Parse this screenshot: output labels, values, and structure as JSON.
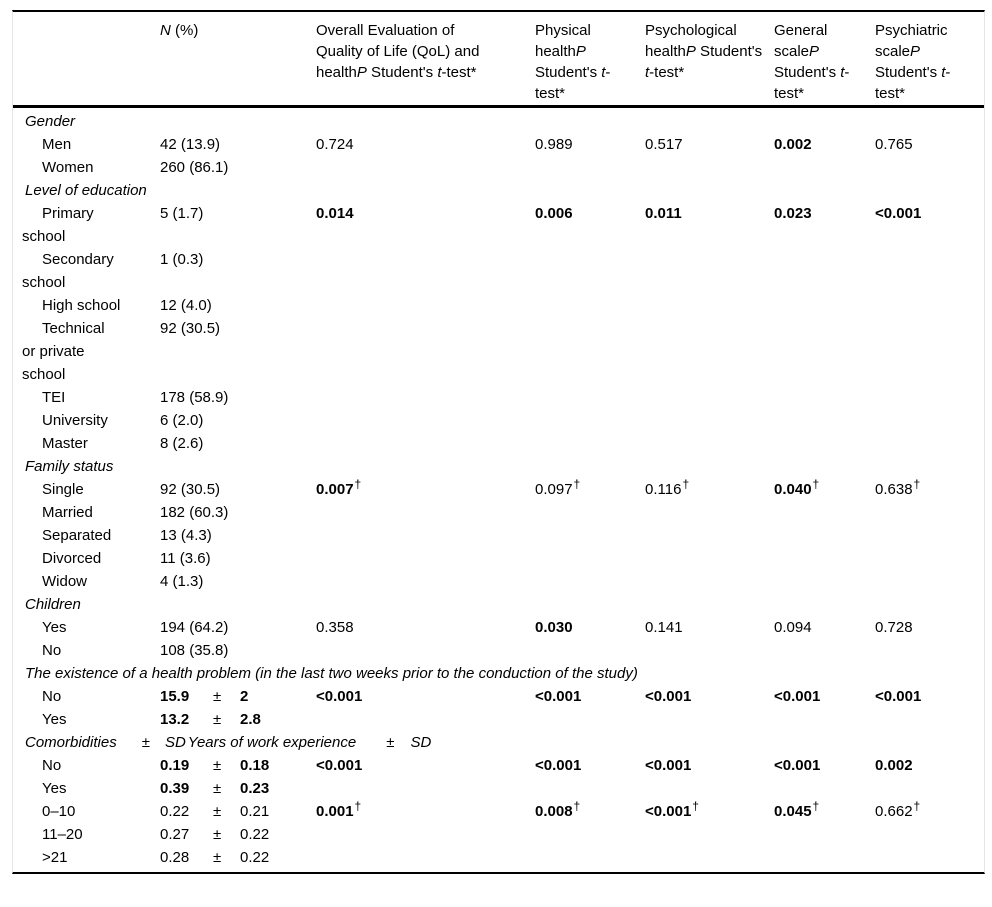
{
  "table": {
    "header": {
      "n": [
        {
          "t": "N",
          "i": 1
        },
        {
          "t": " (%)"
        }
      ],
      "qol": [
        {
          "t": "Overall Evaluation of Quality of Life (QoL) and health"
        },
        {
          "t": "P",
          "i": 1
        },
        {
          "t": " Student's "
        },
        {
          "t": "t",
          "i": 1
        },
        {
          "t": "-test*"
        }
      ],
      "phys": [
        {
          "t": "Physical health"
        },
        {
          "t": "P",
          "i": 1
        },
        {
          "t": " Student's "
        },
        {
          "t": "t",
          "i": 1
        },
        {
          "t": "-test*"
        }
      ],
      "psych": [
        {
          "t": "Psychological health"
        },
        {
          "t": "P",
          "i": 1
        },
        {
          "t": " Student's "
        },
        {
          "t": "t",
          "i": 1
        },
        {
          "t": "-test*"
        }
      ],
      "gen": [
        {
          "t": "General scale"
        },
        {
          "t": "P",
          "i": 1
        },
        {
          "t": " Student's "
        },
        {
          "t": "t",
          "i": 1
        },
        {
          "t": "-test*"
        }
      ],
      "psy": [
        {
          "t": "Psychiatric scale"
        },
        {
          "t": "P",
          "i": 1
        },
        {
          "t": " Student's "
        },
        {
          "t": "t",
          "i": 1
        },
        {
          "t": "-test*"
        }
      ]
    },
    "rows": [
      {
        "type": "section",
        "label": "Gender"
      },
      {
        "type": "data",
        "label": "Men",
        "n": "42 (13.9)",
        "p": {
          "qol": {
            "v": "0.724"
          },
          "phys": {
            "v": "0.989"
          },
          "psych": {
            "v": "0.517"
          },
          "gen": {
            "v": "0.002",
            "b": 1
          },
          "psy": {
            "v": "0.765"
          }
        }
      },
      {
        "type": "data",
        "label": "Women",
        "n": "260 (86.1)"
      },
      {
        "type": "section",
        "label": "Level of education"
      },
      {
        "type": "data",
        "label": "Primary school",
        "n": "5 (1.7)",
        "p": {
          "qol": {
            "v": "0.014",
            "b": 1
          },
          "phys": {
            "v": "0.006",
            "b": 1
          },
          "psych": {
            "v": "0.011",
            "b": 1
          },
          "gen": {
            "v": "0.023",
            "b": 1
          },
          "psy": {
            "v": "<0.001",
            "b": 1
          }
        }
      },
      {
        "type": "data",
        "label": "Secondary school",
        "n": "1 (0.3)"
      },
      {
        "type": "data",
        "label": "High school",
        "n": "12 (4.0)"
      },
      {
        "type": "data",
        "label": "Technical or private school",
        "n": "92 (30.5)"
      },
      {
        "type": "data",
        "label": "TEI",
        "n": "178 (58.9)"
      },
      {
        "type": "data",
        "label": "University",
        "n": "6 (2.0)"
      },
      {
        "type": "data",
        "label": "Master",
        "n": "8 (2.6)"
      },
      {
        "type": "section",
        "label": "Family status"
      },
      {
        "type": "data",
        "label": "Single",
        "n": "92 (30.5)",
        "p": {
          "qol": {
            "v": "0.007",
            "b": 1,
            "sup": "†"
          },
          "phys": {
            "v": "0.097",
            "sup": "†"
          },
          "psych": {
            "v": "0.116",
            "sup": "†"
          },
          "gen": {
            "v": "0.040",
            "b": 1,
            "sup": "†"
          },
          "psy": {
            "v": "0.638",
            "sup": "†"
          }
        }
      },
      {
        "type": "data",
        "label": "Married",
        "n": "182 (60.3)"
      },
      {
        "type": "data",
        "label": "Separated",
        "n": "13 (4.3)"
      },
      {
        "type": "data",
        "label": "Divorced",
        "n": "11 (3.6)"
      },
      {
        "type": "data",
        "label": "Widow",
        "n": "4 (1.3)"
      },
      {
        "type": "section",
        "label": "Children"
      },
      {
        "type": "data",
        "label": "Yes",
        "n": "194 (64.2)",
        "p": {
          "qol": {
            "v": "0.358"
          },
          "phys": {
            "v": "0.030",
            "b": 1
          },
          "psych": {
            "v": "0.141"
          },
          "gen": {
            "v": "0.094"
          },
          "psy": {
            "v": "0.728"
          }
        }
      },
      {
        "type": "data",
        "label": "No",
        "n": "108 (35.8)"
      },
      {
        "type": "section",
        "label": "The existence of a health problem (in the last two weeks prior to the conduction of the study)"
      },
      {
        "type": "data",
        "label": "No",
        "n": {
          "v1": "15.9",
          "pm": "±",
          "v2": "2",
          "b": 1
        },
        "p": {
          "qol": {
            "v": "<0.001",
            "b": 1
          },
          "phys": {
            "v": "<0.001",
            "b": 1
          },
          "psych": {
            "v": "<0.001",
            "b": 1
          },
          "gen": {
            "v": "<0.001",
            "b": 1
          },
          "psy": {
            "v": "<0.001",
            "b": 1
          }
        }
      },
      {
        "type": "data",
        "label": "Yes",
        "n": {
          "v1": "13.2",
          "pm": "±",
          "v2": "2.8",
          "b": 1
        }
      },
      {
        "type": "section",
        "segments": [
          "Comorbidities",
          "±",
          "SD",
          "Years of work experience",
          "±",
          "SD"
        ]
      },
      {
        "type": "data",
        "label": "No",
        "n": {
          "v1": "0.19",
          "pm": "±",
          "v2": "0.18",
          "b": 1
        },
        "p": {
          "qol": {
            "v": "<0.001",
            "b": 1
          },
          "phys": {
            "v": "<0.001",
            "b": 1
          },
          "psych": {
            "v": "<0.001",
            "b": 1
          },
          "gen": {
            "v": "<0.001",
            "b": 1
          },
          "psy": {
            "v": "0.002",
            "b": 1
          }
        }
      },
      {
        "type": "data",
        "label": "Yes",
        "n": {
          "v1": "0.39",
          "pm": "±",
          "v2": "0.23",
          "b": 1
        }
      },
      {
        "type": "data",
        "label": "0–10",
        "n": {
          "v1": "0.22",
          "pm": "±",
          "v2": "0.21"
        },
        "p": {
          "qol": {
            "v": "0.001",
            "b": 1,
            "sup": "†"
          },
          "phys": {
            "v": "0.008",
            "b": 1,
            "sup": "†"
          },
          "psych": {
            "v": "<0.001",
            "b": 1,
            "sup": "†"
          },
          "gen": {
            "v": "0.045",
            "b": 1,
            "sup": "†"
          },
          "psy": {
            "v": "0.662",
            "sup": "†"
          }
        }
      },
      {
        "type": "data",
        "label": "11–20",
        "n": {
          "v1": "0.27",
          "pm": "±",
          "v2": "0.22"
        }
      },
      {
        "type": "data",
        "label": ">21",
        "n": {
          "v1": "0.28",
          "pm": "±",
          "v2": "0.22"
        }
      }
    ]
  }
}
